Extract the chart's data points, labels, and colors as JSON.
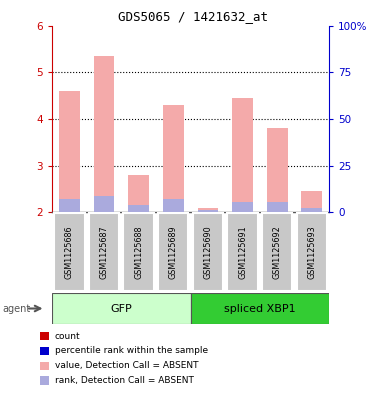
{
  "title": "GDS5065 / 1421632_at",
  "samples": [
    "GSM1125686",
    "GSM1125687",
    "GSM1125688",
    "GSM1125689",
    "GSM1125690",
    "GSM1125691",
    "GSM1125692",
    "GSM1125693"
  ],
  "pink_bar_top": [
    4.6,
    5.35,
    2.8,
    4.3,
    2.1,
    4.45,
    3.8,
    2.45
  ],
  "blue_bar_top": [
    2.28,
    2.35,
    2.15,
    2.28,
    2.05,
    2.22,
    2.22,
    2.1
  ],
  "bar_bottom": 2.0,
  "ylim_left": [
    2,
    6
  ],
  "ylim_right": [
    0,
    100
  ],
  "yticks_left": [
    2,
    3,
    4,
    5,
    6
  ],
  "yticks_right": [
    0,
    25,
    50,
    75,
    100
  ],
  "ytick_labels_left": [
    "2",
    "3",
    "4",
    "5",
    "6"
  ],
  "ytick_labels_right": [
    "0",
    "25",
    "50",
    "75",
    "100%"
  ],
  "pink_color": "#F4AAAA",
  "blue_color": "#AAAADD",
  "gfp_light": "#CCFFCC",
  "gfp_dark": "#44CC44",
  "xbp_color": "#33CC33",
  "legend_items": [
    {
      "color": "#CC0000",
      "label": "count"
    },
    {
      "color": "#0000CC",
      "label": "percentile rank within the sample"
    },
    {
      "color": "#F4AAAA",
      "label": "value, Detection Call = ABSENT"
    },
    {
      "color": "#AAAADD",
      "label": "rank, Detection Call = ABSENT"
    }
  ],
  "left_axis_color": "#CC0000",
  "right_axis_color": "#0000CC",
  "sample_box_color": "#C8C8C8",
  "agent_label": "agent"
}
